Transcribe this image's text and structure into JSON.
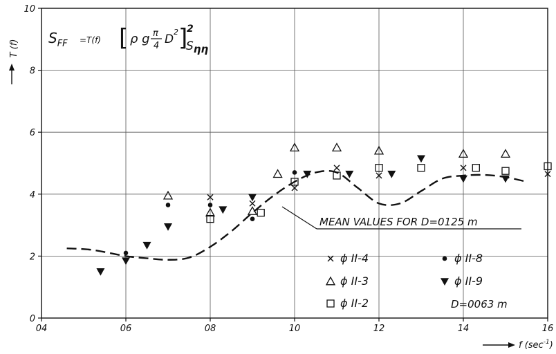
{
  "chart_data": {
    "type": "scatter",
    "xlabel": "f (sec",
    "xlabel_sup": "-1",
    "ylabel": "T (f)",
    "xlim": [
      0.4,
      1.6
    ],
    "ylim": [
      0,
      10
    ],
    "x_ticks": [
      0.4,
      0.6,
      0.8,
      1.0,
      1.2,
      1.4,
      1.6
    ],
    "x_tick_labels": [
      "04",
      "06",
      "08",
      "10",
      "12",
      "14",
      "16"
    ],
    "y_ticks": [
      0,
      2,
      4,
      6,
      8,
      10
    ],
    "y_tick_labels": [
      "0",
      "2",
      "4",
      "6",
      "8",
      "10"
    ],
    "grid": true,
    "formula": {
      "lhs": "S",
      "lhs_sub": "FF",
      "eq": "=T(f)",
      "rho_g": "ρ g",
      "frac_num": "π",
      "frac_den": "4",
      "d": "D",
      "d_exp": "2",
      "outer_exp": "2",
      "rhs": "S",
      "rhs_sub": "ηη"
    },
    "annotation": "MEAN VALUES FOR D=0125 m",
    "legend_note": "D=0063 m",
    "series": [
      {
        "name": "ϕ II-4",
        "marker": "x",
        "x": [
          0.8,
          0.9,
          1.0,
          1.1,
          1.2,
          1.4,
          1.6
        ],
        "y": [
          3.9,
          3.7,
          4.2,
          4.85,
          4.6,
          4.85,
          4.65
        ]
      },
      {
        "name": "ϕ II-3",
        "marker": "triangle",
        "x": [
          0.7,
          0.8,
          0.9,
          0.96,
          1.0,
          1.1,
          1.2,
          1.4,
          1.5
        ],
        "y": [
          3.95,
          3.4,
          3.45,
          4.65,
          5.5,
          5.5,
          5.4,
          5.3,
          5.3
        ]
      },
      {
        "name": "ϕ II-2",
        "marker": "square",
        "x": [
          0.8,
          0.92,
          1.0,
          1.1,
          1.2,
          1.3,
          1.43,
          1.5,
          1.6
        ],
        "y": [
          3.2,
          3.4,
          4.4,
          4.6,
          4.85,
          4.85,
          4.85,
          4.75,
          4.9
        ]
      },
      {
        "name": "ϕ II-8",
        "marker": "dot",
        "x": [
          0.6,
          0.7,
          0.8,
          0.9,
          1.0
        ],
        "y": [
          2.1,
          3.65,
          3.65,
          3.2,
          4.7
        ]
      },
      {
        "name": "ϕ II-9",
        "marker": "triangle-down",
        "x": [
          0.54,
          0.6,
          0.65,
          0.7,
          0.83,
          0.9,
          1.03,
          1.13,
          1.23,
          1.3,
          1.4,
          1.5
        ],
        "y": [
          1.5,
          1.85,
          2.35,
          2.95,
          3.5,
          3.9,
          4.65,
          4.65,
          4.65,
          5.15,
          4.5,
          4.5
        ]
      }
    ],
    "mean_curve": {
      "name": "MEAN VALUES FOR D=0125 m",
      "style": "dashed",
      "x": [
        0.46,
        0.52,
        0.6,
        0.65,
        0.7,
        0.75,
        0.8,
        0.85,
        0.9,
        0.95,
        1.0,
        1.05,
        1.1,
        1.15,
        1.2,
        1.25,
        1.3,
        1.35,
        1.4,
        1.45,
        1.5,
        1.55
      ],
      "y": [
        2.25,
        2.2,
        2.0,
        1.93,
        1.88,
        1.95,
        2.3,
        2.8,
        3.4,
        3.95,
        4.4,
        4.7,
        4.7,
        4.2,
        3.7,
        3.7,
        4.1,
        4.5,
        4.6,
        4.62,
        4.55,
        4.4
      ]
    }
  }
}
